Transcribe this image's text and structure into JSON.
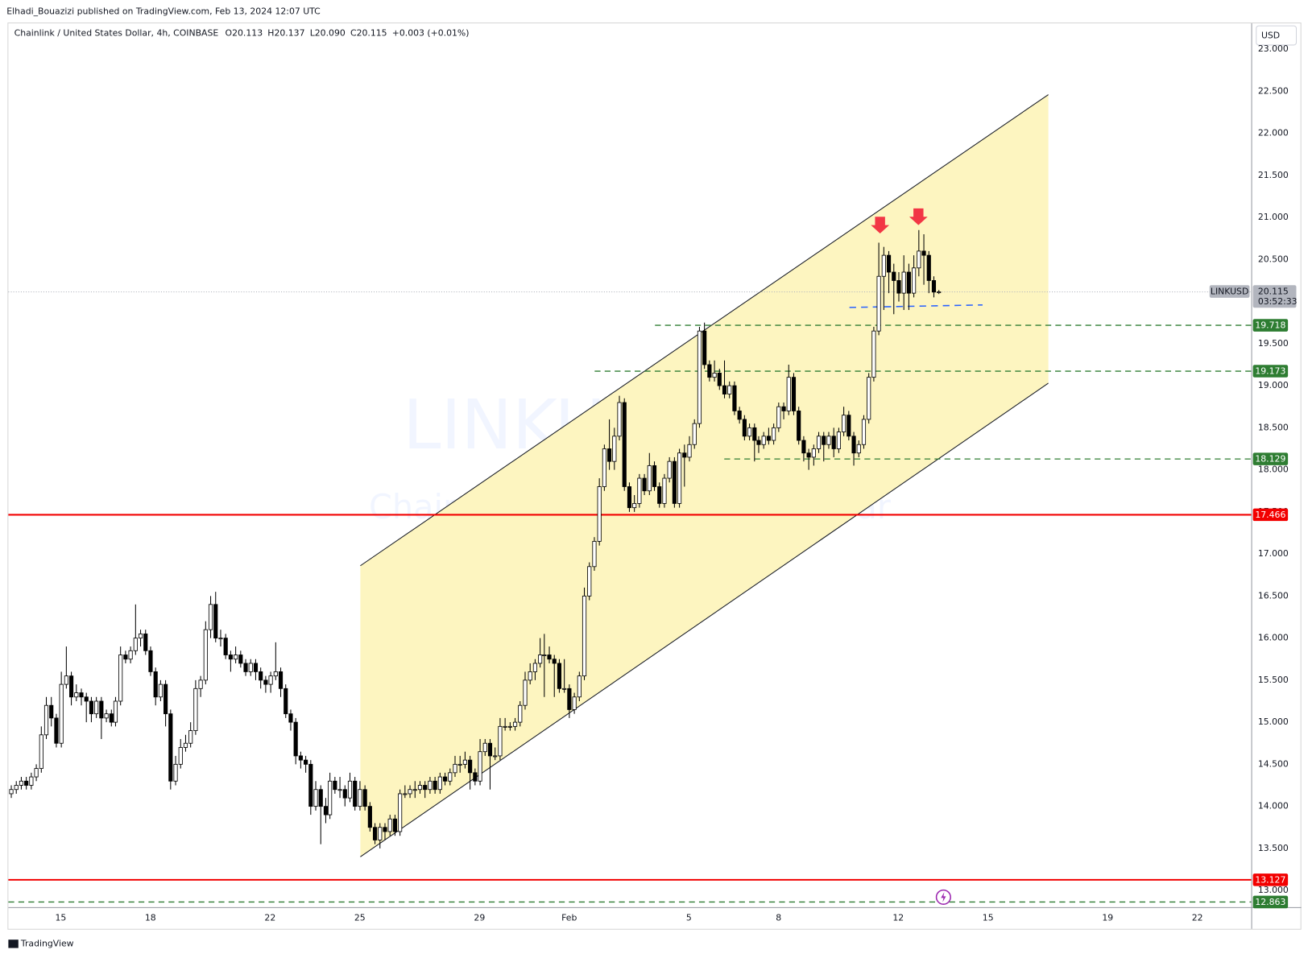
{
  "header": {
    "publisher": "Elhadi_Bouazizi published on TradingView.com, Feb 13, 2024 12:07 UTC",
    "brand": "TradingView"
  },
  "chart_data": {
    "type": "candlestick",
    "symbol": "Chainlink / United States Dollar, 4h, COINBASE",
    "ohlc": [
      {
        "label": "O",
        "value": "20.113"
      },
      {
        "label": "H",
        "value": "20.137"
      },
      {
        "label": "L",
        "value": "20.090"
      },
      {
        "label": "C",
        "value": "20.115"
      }
    ],
    "change": "+0.003 (+0.01%)",
    "currency": "USD",
    "watermark": [
      "LINKUSD, 4h",
      "Chainlink / United States Dollar"
    ],
    "up_color": "#ffffff",
    "down_color": "#000000",
    "xlim": [
      -0.5,
      248.8
    ],
    "xticks": [
      {
        "value": 10,
        "label": "15"
      },
      {
        "value": 28,
        "label": "18"
      },
      {
        "value": 52,
        "label": "22"
      },
      {
        "value": 70,
        "label": "25"
      },
      {
        "value": 94,
        "label": "29"
      },
      {
        "value": 112,
        "label": "Feb"
      },
      {
        "value": 136,
        "label": "5"
      },
      {
        "value": 154,
        "label": "8"
      },
      {
        "value": 178,
        "label": "12"
      },
      {
        "value": 196,
        "label": "15"
      },
      {
        "value": 220,
        "label": "19"
      },
      {
        "value": 238,
        "label": "22"
      }
    ],
    "ylim": [
      12.802,
      23.307
    ],
    "yticks": [
      {
        "value": 13,
        "label": "13.000"
      },
      {
        "value": 13.5,
        "label": "13.500"
      },
      {
        "value": 14,
        "label": "14.000"
      },
      {
        "value": 14.5,
        "label": "14.500"
      },
      {
        "value": 15,
        "label": "15.000"
      },
      {
        "value": 15.5,
        "label": "15.500"
      },
      {
        "value": 16,
        "label": "16.000"
      },
      {
        "value": 16.5,
        "label": "16.500"
      },
      {
        "value": 17,
        "label": "17.000"
      },
      {
        "value": 17.5,
        "label": "17.500"
      },
      {
        "value": 18,
        "label": "18.000"
      },
      {
        "value": 18.5,
        "label": "18.500"
      },
      {
        "value": 19,
        "label": "19.000"
      },
      {
        "value": 19.5,
        "label": "19.500"
      },
      {
        "value": 20,
        "label": "20.000"
      },
      {
        "value": 20.5,
        "label": "20.500"
      },
      {
        "value": 21,
        "label": "21.000"
      },
      {
        "value": 21.5,
        "label": "21.500"
      },
      {
        "value": 22,
        "label": "22.000"
      },
      {
        "value": 22.5,
        "label": "22.500"
      },
      {
        "value": 23,
        "label": "23.000"
      }
    ],
    "candles": [
      [
        14.15,
        14.25,
        14.1,
        14.2
      ],
      [
        14.2,
        14.3,
        14.15,
        14.25
      ],
      [
        14.25,
        14.35,
        14.2,
        14.3
      ],
      [
        14.3,
        14.35,
        14.2,
        14.25
      ],
      [
        14.25,
        14.4,
        14.2,
        14.35
      ],
      [
        14.35,
        14.5,
        14.3,
        14.45
      ],
      [
        14.45,
        14.95,
        14.4,
        14.85
      ],
      [
        14.85,
        15.3,
        14.8,
        15.2
      ],
      [
        15.2,
        15.3,
        14.95,
        15.05
      ],
      [
        15.05,
        15.1,
        14.7,
        14.75
      ],
      [
        14.75,
        15.6,
        14.7,
        15.45
      ],
      [
        15.45,
        15.9,
        15.4,
        15.55
      ],
      [
        15.55,
        15.6,
        15.2,
        15.3
      ],
      [
        15.3,
        15.45,
        15.25,
        15.35
      ],
      [
        15.35,
        15.4,
        15.2,
        15.3
      ],
      [
        15.3,
        15.35,
        15.0,
        15.25
      ],
      [
        15.25,
        15.3,
        15.0,
        15.1
      ],
      [
        15.1,
        15.3,
        15.05,
        15.25
      ],
      [
        15.25,
        15.3,
        14.8,
        15.05
      ],
      [
        15.05,
        15.15,
        15.0,
        15.1
      ],
      [
        15.1,
        15.15,
        14.95,
        15.0
      ],
      [
        15.0,
        15.3,
        14.95,
        15.25
      ],
      [
        15.25,
        15.9,
        15.2,
        15.8
      ],
      [
        15.8,
        15.85,
        15.7,
        15.75
      ],
      [
        15.75,
        15.9,
        15.7,
        15.85
      ],
      [
        15.85,
        16.4,
        15.8,
        16.0
      ],
      [
        16.0,
        16.1,
        15.9,
        16.05
      ],
      [
        16.05,
        16.1,
        15.8,
        15.85
      ],
      [
        15.85,
        15.9,
        15.55,
        15.6
      ],
      [
        15.6,
        15.65,
        15.2,
        15.3
      ],
      [
        15.3,
        15.5,
        15.25,
        15.45
      ],
      [
        15.45,
        15.5,
        14.95,
        15.1
      ],
      [
        15.1,
        15.15,
        14.2,
        14.3
      ],
      [
        14.3,
        14.6,
        14.25,
        14.5
      ],
      [
        14.5,
        14.8,
        14.45,
        14.7
      ],
      [
        14.7,
        14.85,
        14.65,
        14.75
      ],
      [
        14.75,
        15.0,
        14.7,
        14.9
      ],
      [
        14.9,
        15.5,
        14.85,
        15.4
      ],
      [
        15.4,
        15.55,
        15.3,
        15.5
      ],
      [
        15.5,
        16.2,
        15.45,
        16.1
      ],
      [
        16.1,
        16.5,
        16.0,
        16.4
      ],
      [
        16.4,
        16.55,
        15.95,
        16.0
      ],
      [
        16.0,
        16.1,
        15.9,
        16.0
      ],
      [
        16.0,
        16.05,
        15.75,
        15.8
      ],
      [
        15.8,
        15.85,
        15.6,
        15.75
      ],
      [
        15.75,
        15.9,
        15.7,
        15.8
      ],
      [
        15.8,
        15.85,
        15.65,
        15.7
      ],
      [
        15.7,
        15.75,
        15.55,
        15.6
      ],
      [
        15.6,
        15.75,
        15.55,
        15.7
      ],
      [
        15.7,
        15.75,
        15.5,
        15.6
      ],
      [
        15.6,
        15.65,
        15.4,
        15.5
      ],
      [
        15.5,
        15.55,
        15.35,
        15.45
      ],
      [
        15.45,
        15.6,
        15.35,
        15.55
      ],
      [
        15.55,
        15.95,
        15.5,
        15.6
      ],
      [
        15.6,
        15.65,
        15.3,
        15.4
      ],
      [
        15.4,
        15.45,
        15.05,
        15.1
      ],
      [
        15.1,
        15.15,
        14.9,
        15.0
      ],
      [
        15.0,
        15.05,
        14.5,
        14.6
      ],
      [
        14.6,
        14.65,
        14.45,
        14.55
      ],
      [
        14.55,
        14.6,
        14.4,
        14.5
      ],
      [
        14.5,
        14.55,
        13.9,
        14.0
      ],
      [
        14.0,
        14.3,
        13.95,
        14.2
      ],
      [
        14.2,
        14.25,
        13.55,
        14.0
      ],
      [
        14.0,
        14.1,
        13.8,
        13.9
      ],
      [
        13.9,
        14.4,
        13.85,
        14.3
      ],
      [
        14.3,
        14.35,
        14.15,
        14.2
      ],
      [
        14.2,
        14.35,
        14.1,
        14.2
      ],
      [
        14.2,
        14.25,
        14.0,
        14.1
      ],
      [
        14.1,
        14.4,
        14.05,
        14.3
      ],
      [
        14.3,
        14.35,
        13.95,
        14.0
      ],
      [
        14.0,
        14.3,
        13.95,
        14.2
      ],
      [
        14.2,
        14.25,
        13.95,
        14.0
      ],
      [
        14.0,
        14.05,
        13.7,
        13.75
      ],
      [
        13.75,
        13.8,
        13.55,
        13.6
      ],
      [
        13.6,
        13.8,
        13.5,
        13.75
      ],
      [
        13.75,
        13.8,
        13.6,
        13.7
      ],
      [
        13.7,
        13.9,
        13.65,
        13.85
      ],
      [
        13.85,
        13.9,
        13.65,
        13.7
      ],
      [
        13.7,
        14.2,
        13.65,
        14.15
      ],
      [
        14.15,
        14.25,
        14.1,
        14.15
      ],
      [
        14.15,
        14.25,
        14.1,
        14.2
      ],
      [
        14.2,
        14.3,
        14.1,
        14.2
      ],
      [
        14.2,
        14.3,
        14.15,
        14.25
      ],
      [
        14.25,
        14.3,
        14.1,
        14.2
      ],
      [
        14.2,
        14.35,
        14.15,
        14.3
      ],
      [
        14.3,
        14.35,
        14.15,
        14.2
      ],
      [
        14.2,
        14.4,
        14.15,
        14.35
      ],
      [
        14.35,
        14.4,
        14.25,
        14.3
      ],
      [
        14.3,
        14.45,
        14.25,
        14.4
      ],
      [
        14.4,
        14.6,
        14.35,
        14.5
      ],
      [
        14.5,
        14.6,
        14.4,
        14.5
      ],
      [
        14.5,
        14.65,
        14.45,
        14.55
      ],
      [
        14.55,
        14.6,
        14.2,
        14.4
      ],
      [
        14.4,
        14.45,
        14.25,
        14.3
      ],
      [
        14.3,
        14.8,
        14.25,
        14.65
      ],
      [
        14.65,
        14.8,
        14.6,
        14.75
      ],
      [
        14.75,
        14.8,
        14.2,
        14.6
      ],
      [
        14.6,
        14.7,
        14.55,
        14.6
      ],
      [
        14.6,
        15.05,
        14.55,
        14.95
      ],
      [
        14.95,
        15.05,
        14.9,
        14.95
      ],
      [
        14.95,
        15.0,
        14.9,
        14.95
      ],
      [
        14.95,
        15.05,
        14.9,
        15.0
      ],
      [
        15.0,
        15.25,
        14.95,
        15.2
      ],
      [
        15.2,
        15.6,
        15.15,
        15.5
      ],
      [
        15.5,
        15.7,
        15.45,
        15.6
      ],
      [
        15.6,
        15.75,
        15.5,
        15.7
      ],
      [
        15.7,
        16.0,
        15.65,
        15.8
      ],
      [
        15.8,
        16.05,
        15.3,
        15.8
      ],
      [
        15.8,
        15.9,
        15.7,
        15.75
      ],
      [
        15.75,
        15.8,
        15.3,
        15.7
      ],
      [
        15.7,
        15.75,
        15.35,
        15.4
      ],
      [
        15.4,
        15.75,
        15.35,
        15.4
      ],
      [
        15.4,
        15.45,
        15.05,
        15.15
      ],
      [
        15.15,
        15.35,
        15.1,
        15.3
      ],
      [
        15.3,
        15.6,
        15.25,
        15.55
      ],
      [
        15.55,
        16.6,
        15.5,
        16.5
      ],
      [
        16.5,
        16.9,
        16.45,
        16.85
      ],
      [
        16.85,
        17.2,
        16.8,
        17.15
      ],
      [
        17.15,
        17.9,
        17.1,
        17.8
      ],
      [
        17.8,
        18.3,
        17.75,
        18.25
      ],
      [
        18.25,
        18.6,
        18.0,
        18.1
      ],
      [
        18.1,
        18.5,
        18.0,
        18.4
      ],
      [
        18.4,
        18.88,
        18.35,
        18.8
      ],
      [
        18.8,
        18.85,
        17.75,
        17.8
      ],
      [
        17.8,
        17.85,
        17.5,
        17.55
      ],
      [
        17.55,
        17.7,
        17.5,
        17.6
      ],
      [
        17.6,
        17.95,
        17.55,
        17.9
      ],
      [
        17.9,
        17.95,
        17.7,
        17.75
      ],
      [
        17.75,
        18.2,
        17.7,
        18.05
      ],
      [
        18.05,
        18.1,
        17.75,
        17.8
      ],
      [
        17.8,
        17.85,
        17.55,
        17.6
      ],
      [
        17.6,
        17.95,
        17.55,
        17.9
      ],
      [
        17.9,
        18.15,
        17.85,
        18.1
      ],
      [
        18.1,
        18.15,
        17.55,
        17.6
      ],
      [
        17.6,
        18.25,
        17.55,
        18.2
      ],
      [
        18.2,
        18.3,
        17.8,
        18.15
      ],
      [
        18.15,
        18.4,
        18.1,
        18.3
      ],
      [
        18.3,
        18.6,
        18.25,
        18.55
      ],
      [
        18.55,
        19.7,
        18.5,
        19.65
      ],
      [
        19.65,
        19.75,
        19.2,
        19.25
      ],
      [
        19.25,
        19.3,
        19.05,
        19.1
      ],
      [
        19.1,
        19.3,
        19.05,
        19.15
      ],
      [
        19.15,
        19.2,
        18.95,
        19.0
      ],
      [
        19.0,
        19.3,
        18.85,
        18.9
      ],
      [
        18.9,
        19.05,
        18.85,
        19.0
      ],
      [
        19.0,
        19.05,
        18.65,
        18.7
      ],
      [
        18.7,
        18.75,
        18.55,
        18.6
      ],
      [
        18.6,
        18.65,
        18.35,
        18.4
      ],
      [
        18.4,
        18.55,
        18.35,
        18.5
      ],
      [
        18.5,
        18.55,
        18.1,
        18.35
      ],
      [
        18.35,
        18.4,
        18.2,
        18.3
      ],
      [
        18.3,
        18.45,
        18.25,
        18.4
      ],
      [
        18.4,
        18.5,
        18.3,
        18.35
      ],
      [
        18.35,
        18.55,
        18.3,
        18.5
      ],
      [
        18.5,
        18.8,
        18.45,
        18.75
      ],
      [
        18.75,
        18.8,
        18.6,
        18.7
      ],
      [
        18.7,
        19.25,
        18.65,
        19.1
      ],
      [
        19.1,
        19.15,
        18.65,
        18.7
      ],
      [
        18.7,
        18.75,
        18.3,
        18.35
      ],
      [
        18.35,
        18.4,
        18.1,
        18.2
      ],
      [
        18.2,
        18.25,
        18.0,
        18.15
      ],
      [
        18.15,
        18.3,
        18.05,
        18.25
      ],
      [
        18.25,
        18.45,
        18.2,
        18.4
      ],
      [
        18.4,
        18.45,
        18.1,
        18.3
      ],
      [
        18.3,
        18.45,
        18.25,
        18.4
      ],
      [
        18.4,
        18.5,
        18.15,
        18.25
      ],
      [
        18.25,
        18.5,
        18.2,
        18.45
      ],
      [
        18.45,
        18.75,
        18.4,
        18.65
      ],
      [
        18.65,
        18.7,
        18.35,
        18.4
      ],
      [
        18.4,
        18.45,
        18.05,
        18.2
      ],
      [
        18.2,
        18.35,
        18.15,
        18.3
      ],
      [
        18.3,
        18.65,
        18.25,
        18.6
      ],
      [
        18.6,
        19.15,
        18.55,
        19.1
      ],
      [
        19.1,
        19.7,
        19.05,
        19.65
      ],
      [
        19.65,
        20.7,
        19.6,
        20.3
      ],
      [
        20.3,
        20.65,
        19.9,
        20.55
      ],
      [
        20.55,
        20.6,
        20.1,
        20.35
      ],
      [
        20.35,
        20.45,
        19.85,
        20.25
      ],
      [
        20.25,
        20.35,
        20.0,
        20.1
      ],
      [
        20.1,
        20.55,
        19.9,
        20.35
      ],
      [
        20.35,
        20.45,
        19.9,
        20.1
      ],
      [
        20.1,
        20.55,
        20.05,
        20.4
      ],
      [
        20.4,
        20.85,
        20.3,
        20.6
      ],
      [
        20.6,
        20.8,
        20.2,
        20.55
      ],
      [
        20.55,
        20.6,
        20.1,
        20.25
      ],
      [
        20.25,
        20.3,
        20.05,
        20.113
      ],
      [
        20.113,
        20.137,
        20.09,
        20.115
      ]
    ],
    "channel": {
      "x": [
        70.1,
        208.1
      ],
      "upper": [
        16.86,
        22.46
      ],
      "lower": [
        13.4,
        19.03
      ],
      "color": "#fdf5c0"
    },
    "levels": [
      {
        "value": 19.718,
        "style": "dashed",
        "color": "#2e7d32",
        "start": 129.2
      },
      {
        "value": 19.173,
        "style": "dashed",
        "color": "#2e7d32",
        "start": 117.1
      },
      {
        "value": 18.129,
        "style": "dashed",
        "color": "#2e7d32",
        "start": 143.1
      },
      {
        "value": 17.466,
        "style": "solid",
        "color": "#f20000"
      },
      {
        "value": 13.127,
        "style": "solid",
        "color": "#f20000"
      },
      {
        "value": 12.863,
        "style": "dashed",
        "color": "#2e7d32"
      }
    ],
    "support_line": {
      "value": 19.95,
      "x": [
        168.2,
        194.9
      ],
      "color": "#2962ff"
    },
    "last_price": {
      "value": 20.115,
      "label": "20.115",
      "ticker": "LINKUSD",
      "countdown": "03:52:33"
    }
  }
}
